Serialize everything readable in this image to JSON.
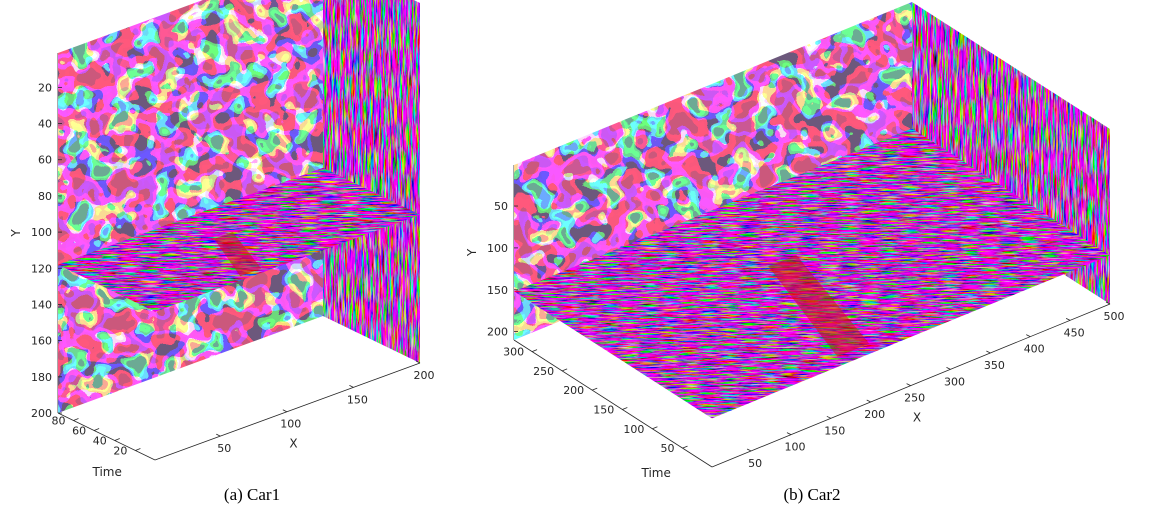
{
  "chart_data": [
    {
      "type": "3d-slice-volume",
      "caption": "(a) Car1",
      "xlabel": "X",
      "ylabel": "Y",
      "tlabel": "Time",
      "x_ticks": [
        50,
        100,
        150,
        200
      ],
      "y_ticks": [
        20,
        40,
        60,
        80,
        100,
        120,
        140,
        160,
        180,
        200
      ],
      "t_ticks": [
        20,
        40,
        60,
        80
      ],
      "xlim": [
        1,
        200
      ],
      "ylim": [
        1,
        200
      ],
      "tlim": [
        1,
        95
      ],
      "y_reversed": true,
      "slice_y": 118,
      "colormap": "hsv-random-texture",
      "highlight_color": "#d01010"
    },
    {
      "type": "3d-slice-volume",
      "caption": "(b) Car2",
      "xlabel": "X",
      "ylabel": "Y",
      "tlabel": "Time",
      "x_ticks": [
        50,
        100,
        150,
        200,
        250,
        300,
        350,
        400,
        450,
        500
      ],
      "y_ticks": [
        50,
        100,
        150,
        200
      ],
      "t_ticks": [
        50,
        100,
        150,
        200,
        250,
        300
      ],
      "xlim": [
        1,
        500
      ],
      "ylim": [
        1,
        210
      ],
      "tlim": [
        1,
        330
      ],
      "y_reversed": true,
      "slice_y": 152,
      "colormap": "hsv-random-texture",
      "highlight_color": "#d01010"
    }
  ]
}
